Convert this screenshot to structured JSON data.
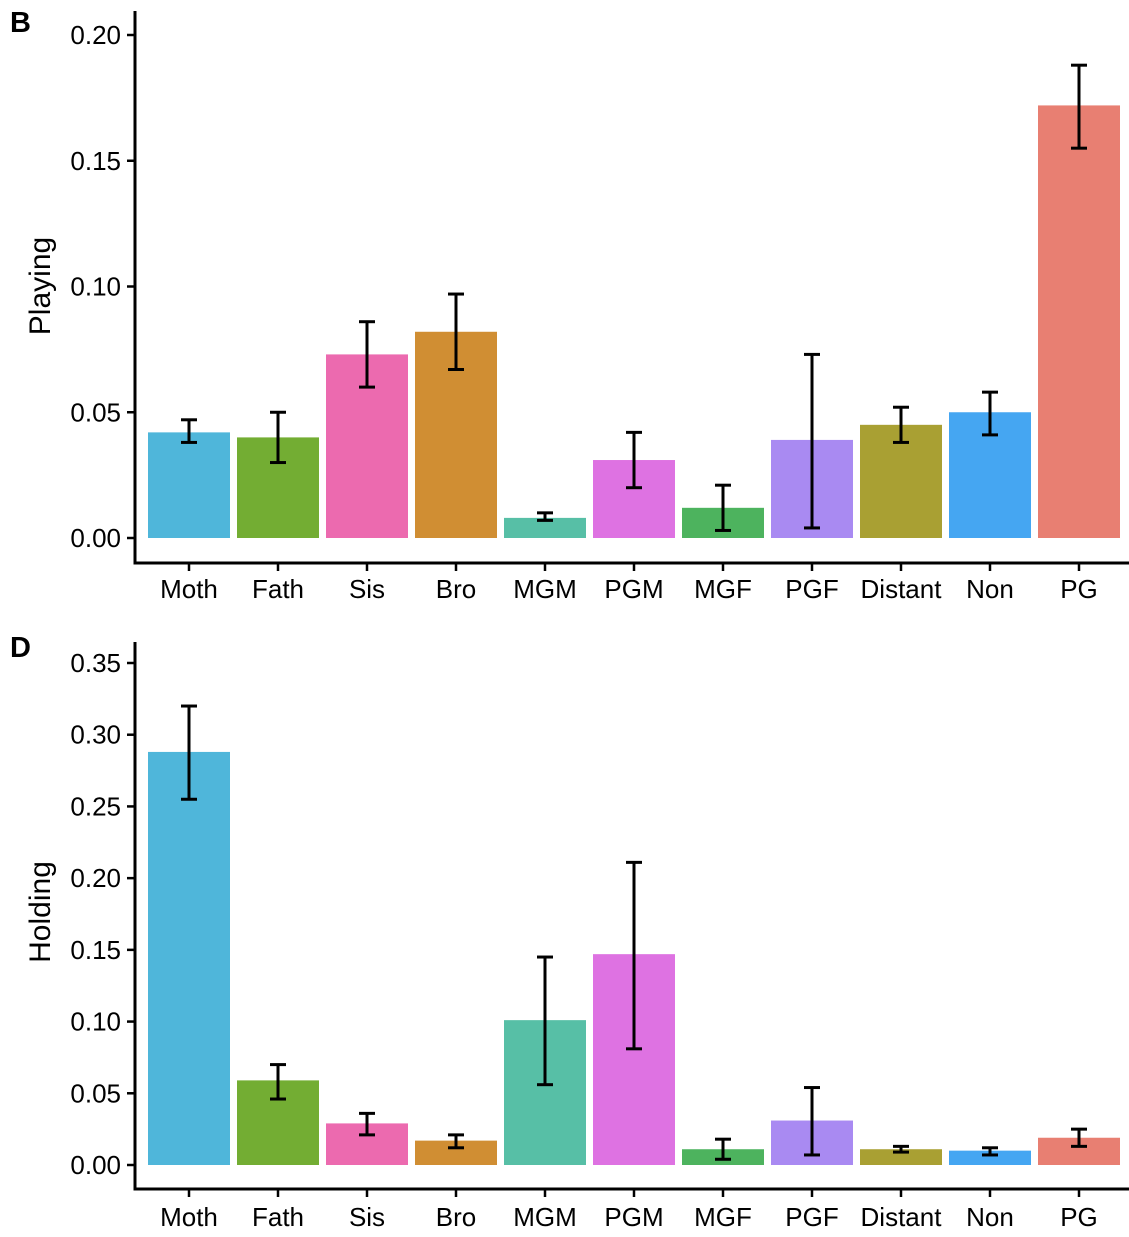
{
  "chart_data": [
    {
      "panel": "B",
      "type": "bar",
      "ylabel": "Playing",
      "xlabel": "",
      "ylim": [
        0,
        0.21
      ],
      "yticks": [
        "0.00",
        "0.05",
        "0.10",
        "0.15",
        "0.20"
      ],
      "categories": [
        "Moth",
        "Fath",
        "Sis",
        "Bro",
        "MGM",
        "PGM",
        "MGF",
        "PGF",
        "Distant",
        "Non",
        "PG"
      ],
      "values": [
        0.042,
        0.04,
        0.073,
        0.082,
        0.008,
        0.031,
        0.012,
        0.039,
        0.045,
        0.05,
        0.172
      ],
      "error_low": [
        0.038,
        0.03,
        0.06,
        0.067,
        0.007,
        0.02,
        0.003,
        0.004,
        0.038,
        0.041,
        0.155
      ],
      "error_high": [
        0.047,
        0.05,
        0.086,
        0.097,
        0.01,
        0.042,
        0.021,
        0.073,
        0.052,
        0.058,
        0.188
      ],
      "grid": false,
      "legend": "none"
    },
    {
      "panel": "D",
      "type": "bar",
      "ylabel": "Holding",
      "xlabel": "",
      "ylim": [
        0,
        0.36
      ],
      "yticks": [
        "0.00",
        "0.05",
        "0.10",
        "0.15",
        "0.20",
        "0.25",
        "0.30",
        "0.35"
      ],
      "categories": [
        "Moth",
        "Fath",
        "Sis",
        "Bro",
        "MGM",
        "PGM",
        "MGF",
        "PGF",
        "Distant",
        "Non",
        "PG"
      ],
      "values": [
        0.288,
        0.059,
        0.029,
        0.017,
        0.101,
        0.147,
        0.011,
        0.031,
        0.011,
        0.01,
        0.019
      ],
      "error_low": [
        0.255,
        0.046,
        0.021,
        0.012,
        0.056,
        0.081,
        0.004,
        0.007,
        0.009,
        0.007,
        0.013
      ],
      "error_high": [
        0.32,
        0.07,
        0.036,
        0.021,
        0.145,
        0.211,
        0.018,
        0.054,
        0.013,
        0.012,
        0.025
      ],
      "grid": false,
      "legend": "none"
    }
  ],
  "colors": {
    "Moth": "#4FB6DA",
    "Fath": "#73AD33",
    "Sis": "#EC6AAF",
    "Bro": "#D08E33",
    "MGM": "#57BFA6",
    "PGM": "#DE72E2",
    "MGF": "#4DB35E",
    "PGF": "#A98AF2",
    "Distant": "#A9A033",
    "Non": "#45A6F2",
    "PG": "#E87F72",
    "axis": "#000000",
    "errorbar": "#000000"
  }
}
